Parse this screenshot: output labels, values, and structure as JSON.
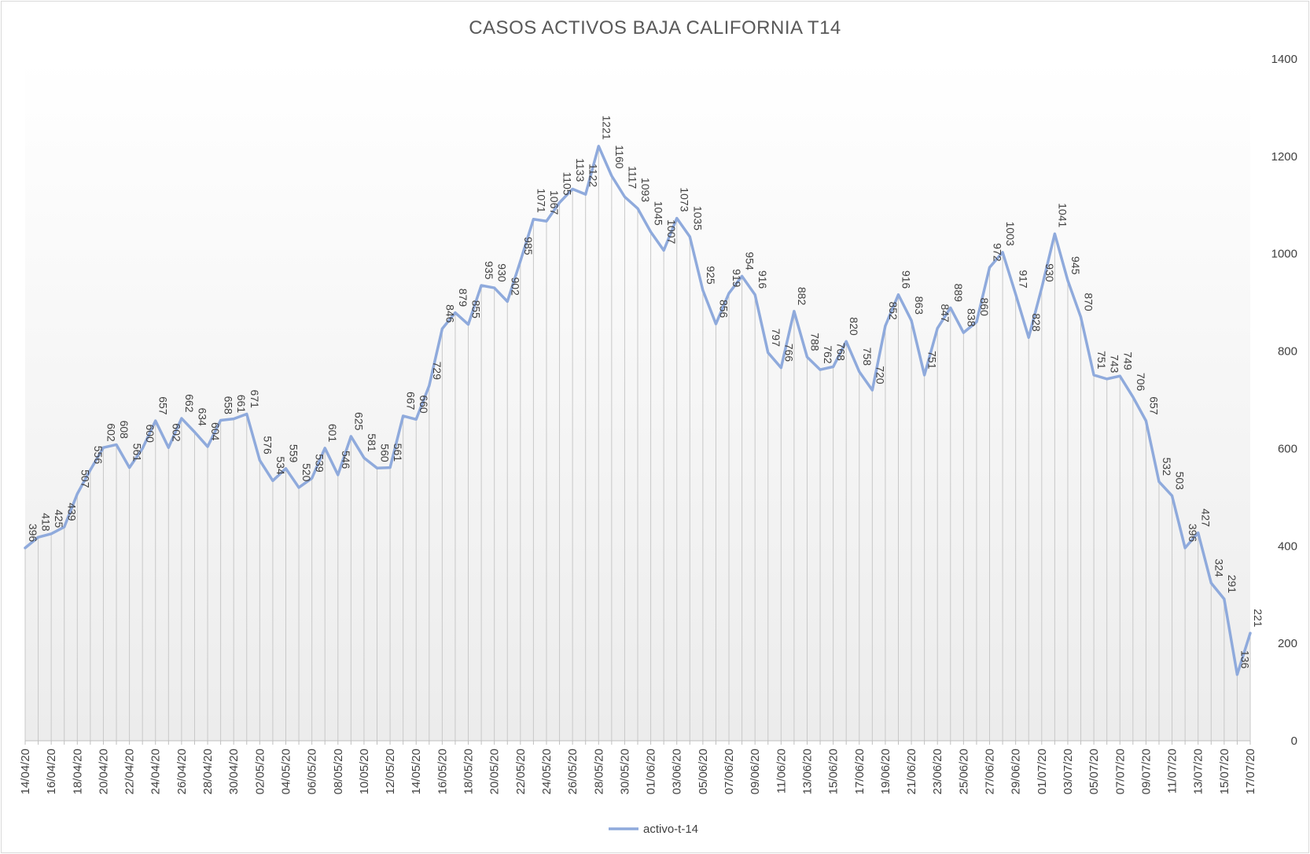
{
  "chart_data": {
    "type": "line",
    "title": "CASOS ACTIVOS BAJA CALIFORNIA  T14",
    "xlabel": "",
    "ylabel": "",
    "ylim": [
      0,
      1400
    ],
    "yticks": [
      0,
      200,
      400,
      600,
      800,
      1000,
      1200,
      1400
    ],
    "yaxis_position": "right",
    "grid": "vertical drop lines",
    "legend_position": "bottom",
    "series": [
      {
        "name": "activo-t-14",
        "color": "#8faadc",
        "values": [
          396,
          418,
          425,
          439,
          507,
          556,
          602,
          608,
          561,
          600,
          657,
          602,
          662,
          634,
          604,
          658,
          661,
          671,
          576,
          534,
          559,
          520,
          539,
          601,
          546,
          625,
          581,
          560,
          561,
          667,
          660,
          729,
          846,
          879,
          855,
          935,
          930,
          902,
          985,
          1071,
          1067,
          1105,
          1133,
          1122,
          1221,
          1160,
          1117,
          1093,
          1045,
          1007,
          1073,
          1035,
          925,
          856,
          919,
          954,
          916,
          797,
          766,
          882,
          788,
          762,
          768,
          820,
          758,
          720,
          852,
          916,
          863,
          751,
          847,
          889,
          838,
          860,
          972,
          1003,
          917,
          828,
          930,
          1041,
          945,
          870,
          751,
          743,
          749,
          706,
          657,
          532,
          503,
          396,
          427,
          324,
          291,
          136,
          221
        ]
      }
    ],
    "categories": [
      "14/04/20",
      "15/04/20",
      "16/04/20",
      "17/04/20",
      "18/04/20",
      "19/04/20",
      "20/04/20",
      "21/04/20",
      "22/04/20",
      "23/04/20",
      "24/04/20",
      "25/04/20",
      "26/04/20",
      "27/04/20",
      "28/04/20",
      "29/04/20",
      "30/04/20",
      "01/05/20",
      "02/05/20",
      "03/05/20",
      "04/05/20",
      "05/05/20",
      "06/05/20",
      "07/05/20",
      "08/05/20",
      "09/05/20",
      "10/05/20",
      "11/05/20",
      "12/05/20",
      "13/05/20",
      "14/05/20",
      "15/05/20",
      "16/05/20",
      "17/05/20",
      "18/05/20",
      "19/05/20",
      "20/05/20",
      "21/05/20",
      "22/05/20",
      "23/05/20",
      "24/05/20",
      "25/05/20",
      "26/05/20",
      "27/05/20",
      "28/05/20",
      "29/05/20",
      "30/05/20",
      "31/05/20",
      "01/06/20",
      "02/06/20",
      "03/06/20",
      "04/06/20",
      "05/06/20",
      "06/06/20",
      "07/06/20",
      "08/06/20",
      "09/06/20",
      "10/06/20",
      "11/06/20",
      "12/06/20",
      "13/06/20",
      "14/06/20",
      "15/06/20",
      "16/06/20",
      "17/06/20",
      "18/06/20",
      "19/06/20",
      "20/06/20",
      "21/06/20",
      "22/06/20",
      "23/06/20",
      "24/06/20",
      "25/06/20",
      "26/06/20",
      "27/06/20",
      "28/06/20",
      "29/06/20",
      "30/06/20",
      "01/07/20",
      "02/07/20",
      "03/07/20",
      "04/07/20",
      "05/07/20",
      "06/07/20",
      "07/07/20",
      "08/07/20",
      "09/07/20",
      "10/07/20",
      "11/07/20",
      "12/07/20",
      "13/07/20",
      "14/07/20",
      "15/07/20",
      "16/07/20",
      "17/07/20"
    ],
    "tick_labels": [
      "14/04/20",
      "16/04/20",
      "18/04/20",
      "20/04/20",
      "22/04/20",
      "24/04/20",
      "26/04/20",
      "28/04/20",
      "30/04/20",
      "02/05/20",
      "04/05/20",
      "06/05/20",
      "08/05/20",
      "10/05/20",
      "12/05/20",
      "14/05/20",
      "16/05/20",
      "18/05/20",
      "20/05/20",
      "22/05/20",
      "24/05/20",
      "26/05/20",
      "28/05/20",
      "30/05/20",
      "01/06/20",
      "03/06/20",
      "05/06/20",
      "07/06/20",
      "09/06/20",
      "11/06/20",
      "13/06/20",
      "15/06/20",
      "17/06/20",
      "19/06/20",
      "21/06/20",
      "23/06/20",
      "25/06/20",
      "27/06/20",
      "29/06/20",
      "01/07/20",
      "03/07/20",
      "05/07/20",
      "07/07/20",
      "09/07/20",
      "11/07/20",
      "13/07/20",
      "15/07/20",
      "17/07/20"
    ]
  }
}
